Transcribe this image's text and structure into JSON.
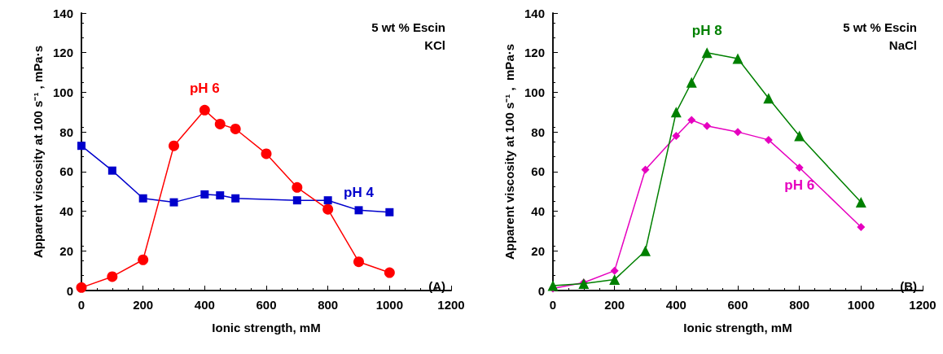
{
  "chart_data": [
    {
      "type": "line",
      "xlabel": "Ionic strength, mM",
      "ylabel": "Apparent viscosity at 100 s⁻¹ , mPa·s",
      "annotations": [
        "5 wt % Escin",
        "KCl",
        "(A)"
      ],
      "xlim": [
        0,
        1200
      ],
      "xticks": [
        0,
        200,
        400,
        600,
        800,
        1000,
        1200
      ],
      "ylim": [
        0,
        140
      ],
      "yticks": [
        0,
        20,
        40,
        60,
        80,
        100,
        120,
        140
      ],
      "grid": false,
      "legend": false,
      "line_style": "solid",
      "series": [
        {
          "name": "pH 6",
          "color": "#ff0000",
          "marker": "circle",
          "x": [
            0,
            100,
            200,
            300,
            400,
            450,
            500,
            600,
            700,
            800,
            900,
            1000
          ],
          "values": [
            1.5,
            7,
            15.5,
            73,
            91,
            84,
            81.5,
            69,
            52,
            41,
            14.5,
            9
          ]
        },
        {
          "name": "pH 4",
          "color": "#0000cc",
          "marker": "square",
          "x": [
            0,
            100,
            200,
            300,
            400,
            450,
            500,
            700,
            800,
            900,
            1000
          ],
          "values": [
            73,
            60.5,
            46.5,
            44.5,
            48.5,
            48,
            46.5,
            45.5,
            45.5,
            40.5,
            39.5
          ]
        }
      ]
    },
    {
      "type": "line",
      "xlabel": "Ionic strength, mM",
      "ylabel": "Apparent viscosity at 100 s⁻¹ ,  mPa·s",
      "annotations": [
        "5 wt % Escin",
        "NaCl",
        "(B)"
      ],
      "xlim": [
        0,
        1200
      ],
      "xticks": [
        0,
        200,
        400,
        600,
        800,
        1000,
        1200
      ],
      "ylim": [
        0,
        140
      ],
      "yticks": [
        0,
        20,
        40,
        60,
        80,
        100,
        120,
        140
      ],
      "grid": false,
      "legend": false,
      "line_style": "solid",
      "series": [
        {
          "name": "pH 8",
          "color": "#008000",
          "marker": "triangle",
          "x": [
            0,
            100,
            200,
            300,
            400,
            450,
            500,
            600,
            700,
            800,
            1000
          ],
          "values": [
            2.5,
            3.5,
            5.5,
            20,
            90,
            105,
            120,
            117,
            97,
            78,
            44.5
          ]
        },
        {
          "name": "pH 6",
          "color": "#e600bf",
          "marker": "diamond",
          "x": [
            0,
            100,
            200,
            300,
            400,
            450,
            500,
            600,
            700,
            800,
            1000
          ],
          "values": [
            1,
            4,
            10,
            61,
            78,
            86,
            83,
            80,
            76,
            62,
            32
          ]
        }
      ]
    }
  ]
}
